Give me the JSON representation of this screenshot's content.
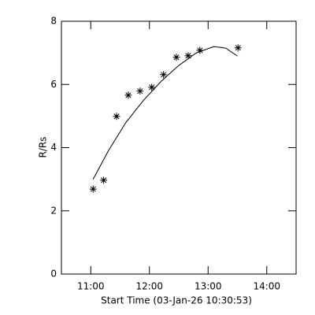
{
  "chart_data": {
    "type": "scatter",
    "xlabel": "Start Time (03-Jan-26 10:30:53)",
    "ylabel": "R/Rs",
    "xlim": [
      10.5,
      14.5
    ],
    "ylim": [
      0,
      8
    ],
    "xticks": [
      {
        "value": 11,
        "label": "11:00"
      },
      {
        "value": 12,
        "label": "12:00"
      },
      {
        "value": 13,
        "label": "13:00"
      },
      {
        "value": 14,
        "label": "14:00"
      }
    ],
    "yticks": [
      0,
      2,
      4,
      6,
      8
    ],
    "series": [
      {
        "color": "#000000",
        "marker": "asterisk",
        "x": [
          11.04,
          11.22,
          11.44,
          11.64,
          11.84,
          12.04,
          12.24,
          12.46,
          12.66,
          12.86,
          13.51
        ],
        "values": [
          2.69,
          2.97,
          4.99,
          5.66,
          5.79,
          5.91,
          6.31,
          6.86,
          6.91,
          7.08,
          7.16
        ]
      },
      {
        "color": "#000000",
        "marker": "line",
        "x": [
          11.04,
          11.3,
          11.6,
          11.9,
          12.2,
          12.5,
          12.8,
          13.1,
          13.3,
          13.5
        ],
        "values": [
          3.0,
          3.9,
          4.8,
          5.5,
          6.1,
          6.6,
          7.0,
          7.2,
          7.15,
          6.9
        ]
      }
    ]
  }
}
